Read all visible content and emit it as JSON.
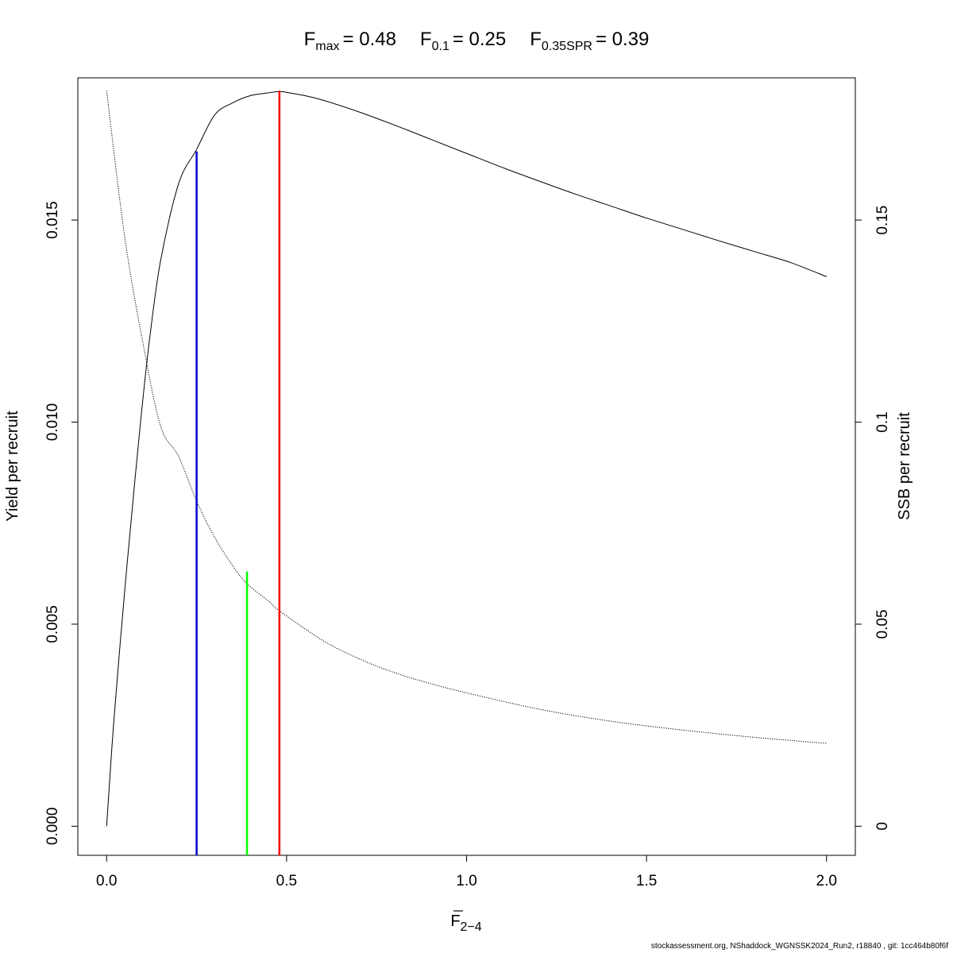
{
  "chart_data": {
    "type": "line",
    "title": {
      "fmax": {
        "base": "F",
        "sub": "max",
        "value": "= 0.48"
      },
      "f01": {
        "base": "F",
        "sub": "0.1",
        "value": "= 0.25"
      },
      "f035spr": {
        "base": "F",
        "sub": "0.35SPR",
        "value": "= 0.39"
      }
    },
    "xlabel": {
      "base": "F",
      "sub": "2−4"
    },
    "ylabel": "Yield per recruit",
    "y2label": "SSB per recruit",
    "xlim": [
      -0.08,
      2.08
    ],
    "ylim": [
      -0.00072,
      0.01852
    ],
    "y2lim": [
      -0.0072,
      0.1852
    ],
    "xticks": [
      0,
      0.5,
      1,
      1.5,
      2
    ],
    "xtick_labels": [
      "0.0",
      "0.5",
      "1.0",
      "1.5",
      "2.0"
    ],
    "yticks": [
      0,
      0.005,
      0.01,
      0.015
    ],
    "ytick_labels": [
      "0.000",
      "0.005",
      "0.010",
      "0.015"
    ],
    "y2ticks": [
      0,
      0.05,
      0.1,
      0.15
    ],
    "y2tick_labels": [
      "0",
      "0.05",
      "0.1",
      "0.15"
    ],
    "grid": false,
    "series": [
      {
        "style": "solid",
        "color": "#000000",
        "axis": "left",
        "x": [
          0,
          0.02,
          0.05,
          0.08,
          0.1,
          0.12,
          0.15,
          0.2,
          0.25,
          0.3,
          0.35,
          0.4,
          0.45,
          0.48,
          0.5,
          0.55,
          0.6,
          0.7,
          0.8,
          0.9,
          1.0,
          1.1,
          1.2,
          1.3,
          1.4,
          1.5,
          1.6,
          1.7,
          1.8,
          1.9,
          2.0
        ],
        "y": [
          0,
          0.0026,
          0.0058,
          0.0087,
          0.0105,
          0.0121,
          0.014,
          0.0159,
          0.01675,
          0.0176,
          0.0179,
          0.01808,
          0.01815,
          0.01818,
          0.01816,
          0.01808,
          0.01797,
          0.01768,
          0.01735,
          0.017,
          0.01665,
          0.0163,
          0.01597,
          0.01565,
          0.01535,
          0.01505,
          0.01477,
          0.01449,
          0.01422,
          0.01395,
          0.0136
        ]
      },
      {
        "style": "dotted",
        "color": "#000000",
        "axis": "right",
        "x": [
          0,
          0.05,
          0.1,
          0.15,
          0.2,
          0.25,
          0.3,
          0.35,
          0.39,
          0.45,
          0.48,
          0.6,
          0.7,
          0.8,
          0.9,
          1.0,
          1.2,
          1.4,
          1.6,
          1.8,
          2.0
        ],
        "y": [
          0.182,
          0.146,
          0.12,
          0.099,
          0.0915,
          0.0805,
          0.0715,
          0.0645,
          0.06,
          0.0557,
          0.0533,
          0.046,
          0.0415,
          0.038,
          0.0353,
          0.033,
          0.029,
          0.026,
          0.0238,
          0.022,
          0.0205
        ]
      }
    ],
    "reference_lines": [
      {
        "label": "Fmax",
        "x": 0.48,
        "y_top": 0.0182,
        "color": "#ff0000"
      },
      {
        "label": "F0.1",
        "x": 0.25,
        "y_top": 0.0167,
        "color": "#0000cc"
      },
      {
        "label": "F0.35SPR",
        "x": 0.39,
        "y_top": 0.0063,
        "color": "#00ff00"
      }
    ]
  },
  "footer": "stockassessment.org, NShaddock_WGNSSK2024_Run2, r18840 , git: 1cc464b80f6f"
}
